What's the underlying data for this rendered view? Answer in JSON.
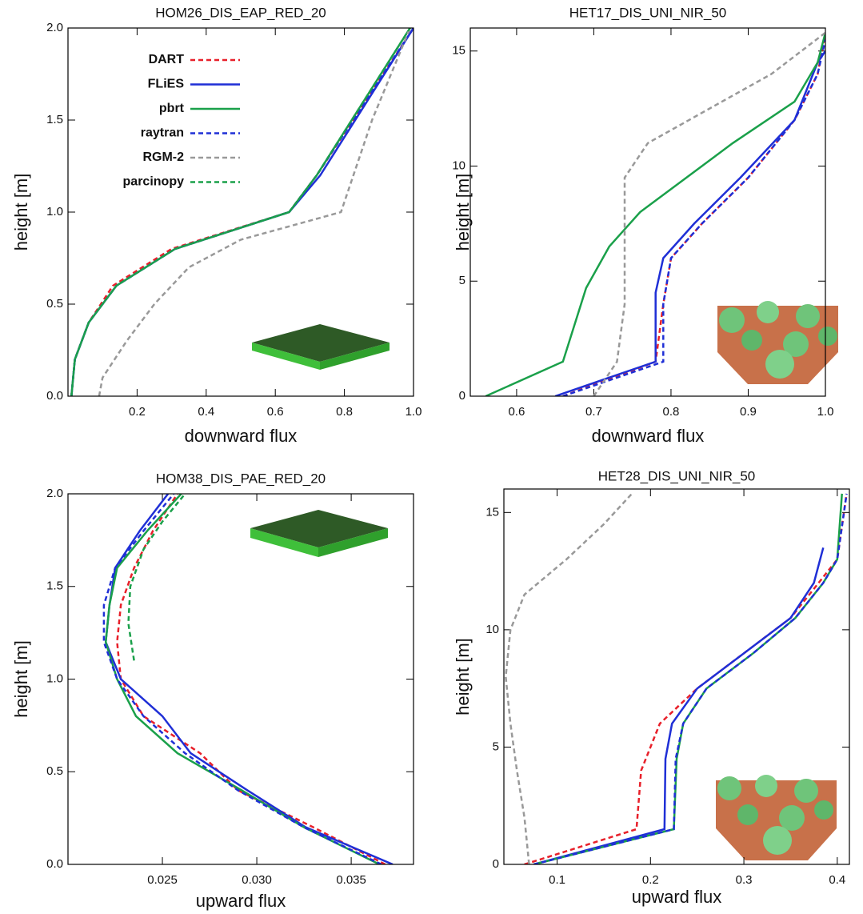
{
  "chart_data": [
    {
      "type": "line",
      "title": "HOM26_DIS_EAP_RED_20",
      "x_label": "downward flux",
      "y_label": "height [m]",
      "xlim": [
        0,
        1
      ],
      "ylim": [
        0,
        2
      ],
      "xticks": [
        0.2,
        0.4,
        0.6,
        0.8,
        {
          "value": 1,
          "label": "1.0"
        }
      ],
      "yticks": [
        {
          "value": 0,
          "label": "0.0"
        },
        0.5,
        {
          "value": 1,
          "label": "1.0"
        },
        1.5,
        {
          "value": 2,
          "label": "2.0"
        }
      ],
      "legend": "upper left",
      "series": [
        {
          "name": "DART",
          "color": "#e8202a",
          "style": "dashed",
          "x": [
            0.01,
            0.02,
            0.06,
            0.13,
            0.3,
            0.64,
            0.72,
            1.0
          ],
          "y": [
            0,
            0.2,
            0.4,
            0.6,
            0.8,
            1.0,
            1.2,
            2.0
          ]
        },
        {
          "name": "FLiES",
          "color": "#1f2fd6",
          "style": "solid",
          "x": [
            0.01,
            0.02,
            0.06,
            0.14,
            0.31,
            0.64,
            0.73,
            1.0
          ],
          "y": [
            0,
            0.2,
            0.4,
            0.6,
            0.8,
            1.0,
            1.2,
            2.0
          ]
        },
        {
          "name": "pbrt",
          "color": "#1aa04a",
          "style": "solid",
          "x": [
            0.01,
            0.02,
            0.06,
            0.14,
            0.31,
            0.64,
            0.72,
            0.99
          ],
          "y": [
            0,
            0.2,
            0.4,
            0.6,
            0.8,
            1.0,
            1.2,
            2.0
          ]
        },
        {
          "name": "raytran",
          "color": "#1f2fd6",
          "style": "dashed",
          "x": [
            0.01,
            0.02,
            0.06,
            0.14,
            0.31,
            0.64,
            0.72,
            1.0
          ],
          "y": [
            0,
            0.2,
            0.4,
            0.6,
            0.8,
            1.0,
            1.2,
            2.0
          ]
        },
        {
          "name": "RGM-2",
          "color": "#999999",
          "style": "dashed",
          "x": [
            0.09,
            0.1,
            0.17,
            0.25,
            0.35,
            0.5,
            0.79,
            0.88,
            0.99
          ],
          "y": [
            0,
            0.1,
            0.3,
            0.5,
            0.7,
            0.85,
            1.0,
            1.5,
            2.0
          ]
        },
        {
          "name": "parcinopy",
          "color": "#1aa04a",
          "style": "dashed",
          "x": [
            0.01,
            0.02,
            0.06,
            0.14,
            0.31,
            0.64,
            0.72,
            0.99
          ],
          "y": [
            0,
            0.2,
            0.4,
            0.6,
            0.8,
            1.0,
            1.2,
            2.0
          ]
        }
      ]
    },
    {
      "type": "line",
      "title": "HET17_DIS_UNI_NIR_50",
      "x_label": "downward flux",
      "y_label": "height [m]",
      "xlim": [
        0.54,
        1.0
      ],
      "ylim": [
        0,
        16
      ],
      "xticks": [
        0.6,
        0.7,
        0.8,
        0.9,
        {
          "value": 1,
          "label": "1.0"
        }
      ],
      "yticks": [
        0,
        5,
        10,
        15
      ],
      "series": [
        {
          "color": "#e8202a",
          "style": "dashed",
          "x": [
            0.66,
            0.78,
            0.79,
            0.8,
            0.84,
            0.9,
            0.96,
            0.99,
            1.0
          ],
          "y": [
            0,
            1.5,
            4,
            6,
            7.5,
            9.5,
            12,
            14,
            15.8
          ]
        },
        {
          "color": "#1f2fd6",
          "style": "solid",
          "x": [
            0.65,
            0.78,
            0.78,
            0.79,
            0.83,
            0.89,
            0.96,
            0.99,
            1.0
          ],
          "y": [
            0,
            1.5,
            4.5,
            6,
            7.5,
            9.5,
            12,
            14.5,
            15
          ]
        },
        {
          "color": "#1aa04a",
          "style": "solid",
          "x": [
            0.56,
            0.66,
            0.69,
            0.72,
            0.76,
            0.88,
            0.96,
            0.99,
            1.0
          ],
          "y": [
            0,
            1.5,
            4.7,
            6.5,
            8,
            11,
            12.8,
            14.5,
            15.8
          ]
        },
        {
          "color": "#1f2fd6",
          "style": "dashed",
          "x": [
            0.66,
            0.79,
            0.79,
            0.8,
            0.84,
            0.9,
            0.96,
            0.99,
            1.0
          ],
          "y": [
            0,
            1.5,
            4,
            6,
            7.5,
            9.5,
            12,
            14,
            15.5
          ]
        },
        {
          "color": "#999999",
          "style": "dashed",
          "x": [
            0.7,
            0.73,
            0.74,
            0.74,
            0.74,
            0.77,
            0.85,
            0.93,
            1.0
          ],
          "y": [
            0,
            1.5,
            4,
            7,
            9.5,
            11,
            12.5,
            14,
            15.8
          ]
        }
      ]
    },
    {
      "type": "line",
      "title": "HOM38_DIS_PAE_RED_20",
      "x_label": "upward flux",
      "y_label": "height [m]",
      "xlim": [
        0.02,
        0.0383
      ],
      "ylim": [
        0,
        2
      ],
      "xticks": [
        0.025,
        {
          "value": 0.03,
          "label": "0.030"
        },
        0.035
      ],
      "yticks": [
        {
          "value": 0,
          "label": "0.0"
        },
        0.5,
        {
          "value": 1,
          "label": "1.0"
        },
        1.5,
        {
          "value": 2,
          "label": "2.0"
        }
      ],
      "series": [
        {
          "color": "#e8202a",
          "style": "dashed",
          "x": [
            0.0368,
            0.033,
            0.029,
            0.027,
            0.024,
            0.0228,
            0.0226,
            0.0228,
            0.0235,
            0.0245,
            0.0258
          ],
          "y": [
            0,
            0.2,
            0.4,
            0.6,
            0.8,
            1.0,
            1.2,
            1.4,
            1.6,
            1.8,
            2.0
          ]
        },
        {
          "color": "#1f2fd6",
          "style": "solid",
          "x": [
            0.0372,
            0.0326,
            0.0295,
            0.0265,
            0.025,
            0.0228,
            0.022,
            0.0222,
            0.0225,
            0.0238,
            0.0253
          ],
          "y": [
            0,
            0.2,
            0.4,
            0.6,
            0.8,
            1.0,
            1.2,
            1.4,
            1.6,
            1.8,
            2.0
          ]
        },
        {
          "color": "#1aa04a",
          "style": "solid",
          "x": [
            0.0365,
            0.0325,
            0.0292,
            0.0258,
            0.0236,
            0.0226,
            0.022,
            0.0222,
            0.0226,
            0.0242,
            0.026
          ],
          "y": [
            0,
            0.2,
            0.4,
            0.6,
            0.8,
            1.0,
            1.2,
            1.4,
            1.6,
            1.8,
            2.0
          ]
        },
        {
          "color": "#1f2fd6",
          "style": "dashed",
          "x": [
            0.0366,
            0.0325,
            0.029,
            0.0262,
            0.024,
            0.0226,
            0.0219,
            0.0219,
            0.0225,
            0.024,
            0.0256
          ],
          "y": [
            0,
            0.2,
            0.4,
            0.6,
            0.8,
            1.0,
            1.2,
            1.4,
            1.6,
            1.8,
            2.0
          ]
        },
        {
          "color": "#1aa04a",
          "style": "dashed",
          "x": [
            0.0235,
            0.0232,
            0.0233,
            0.024,
            0.025,
            0.0262
          ],
          "y": [
            1.1,
            1.3,
            1.5,
            1.7,
            1.85,
            2.0
          ]
        }
      ]
    },
    {
      "type": "line",
      "title": "HET28_DIS_UNI_NIR_50",
      "x_label": "upward flux",
      "y_label": "height [m]",
      "xlim": [
        0.043,
        0.413
      ],
      "ylim": [
        0,
        16
      ],
      "xticks": [
        0.1,
        0.2,
        0.3,
        0.4
      ],
      "yticks": [
        0,
        5,
        10,
        15
      ],
      "series": [
        {
          "color": "#e8202a",
          "style": "dashed",
          "x": [
            0.065,
            0.185,
            0.19,
            0.21,
            0.25,
            0.3,
            0.35,
            0.38,
            0.4,
            0.41
          ],
          "y": [
            0,
            1.5,
            4,
            6,
            7.5,
            9,
            10.5,
            12,
            13,
            15.8
          ]
        },
        {
          "color": "#1f2fd6",
          "style": "solid",
          "x": [
            0.075,
            0.215,
            0.216,
            0.223,
            0.25,
            0.3,
            0.35,
            0.375,
            0.385
          ],
          "y": [
            0,
            1.5,
            4.5,
            6,
            7.5,
            9,
            10.5,
            12,
            13.5
          ]
        },
        {
          "color": "#1aa04a",
          "style": "solid",
          "x": [
            0.075,
            0.225,
            0.228,
            0.235,
            0.26,
            0.31,
            0.355,
            0.385,
            0.4,
            0.405
          ],
          "y": [
            0,
            1.5,
            4.5,
            6,
            7.5,
            9,
            10.5,
            12,
            13,
            15.8
          ]
        },
        {
          "color": "#1f2fd6",
          "style": "dashed",
          "x": [
            0.075,
            0.225,
            0.227,
            0.235,
            0.26,
            0.31,
            0.355,
            0.385,
            0.4,
            0.41
          ],
          "y": [
            0,
            1.5,
            4.5,
            6,
            7.5,
            9,
            10.5,
            12,
            13,
            15.8
          ]
        },
        {
          "color": "#999999",
          "style": "dashed",
          "x": [
            0.07,
            0.065,
            0.057,
            0.05,
            0.045,
            0.05,
            0.065,
            0.11,
            0.15,
            0.18
          ],
          "y": [
            0,
            2,
            4,
            6,
            8,
            10,
            11.5,
            13,
            14.5,
            15.8
          ]
        }
      ]
    }
  ]
}
